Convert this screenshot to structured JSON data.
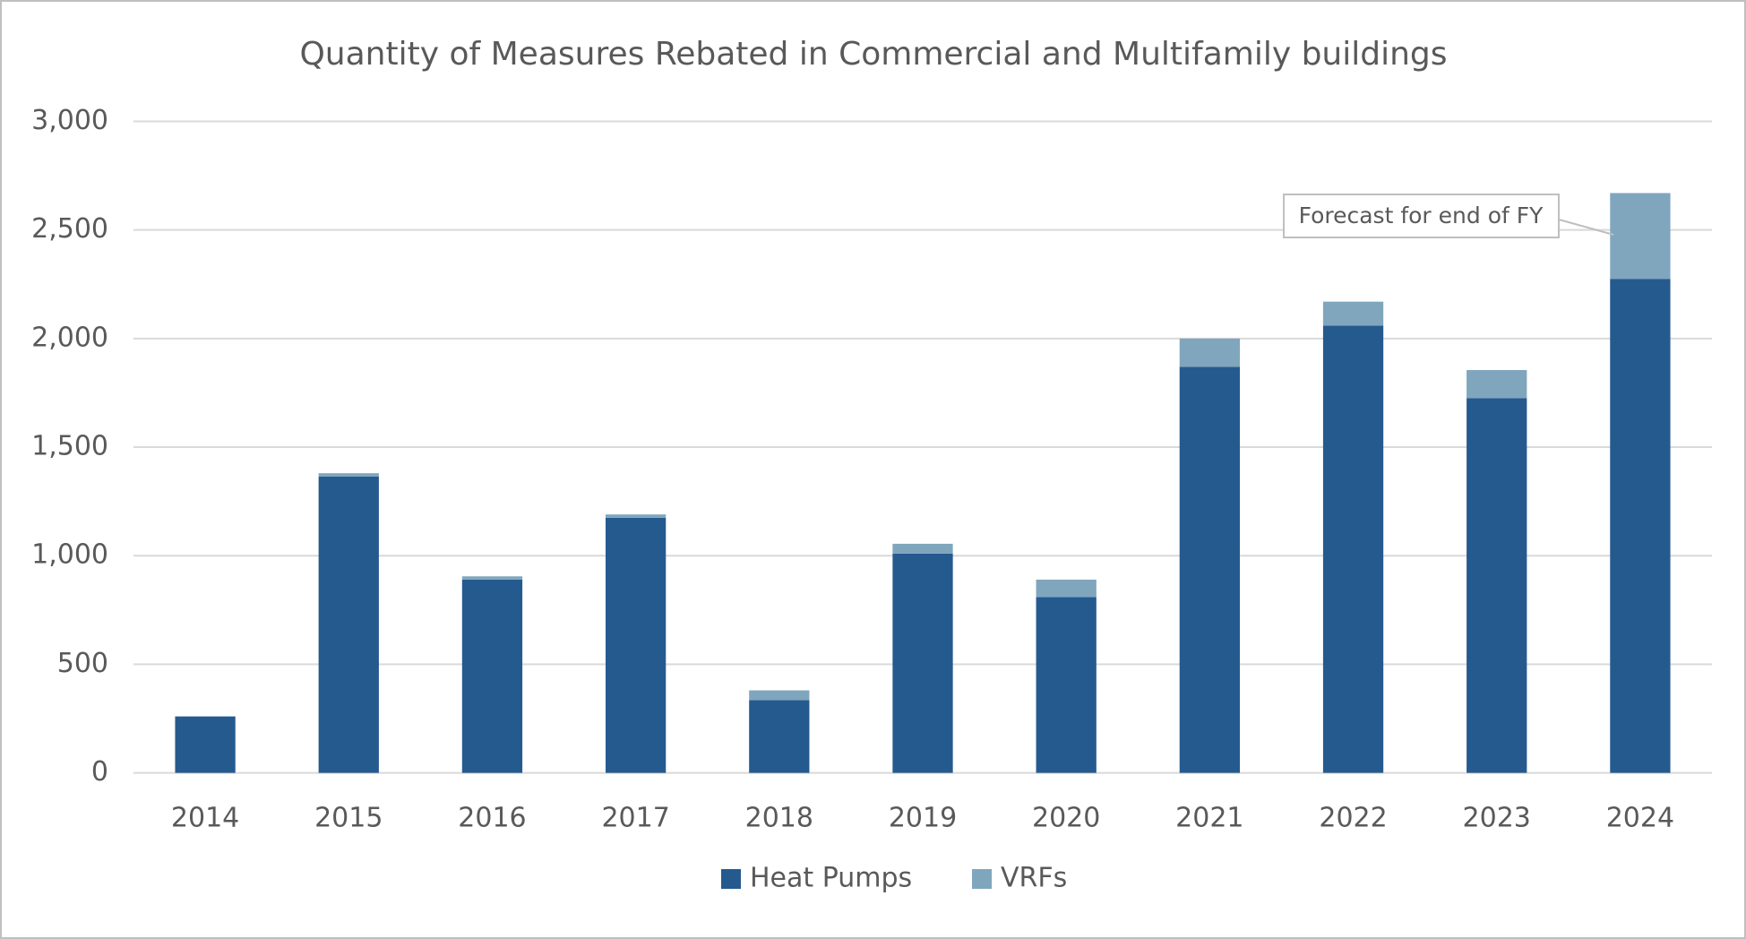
{
  "chart_data": {
    "type": "stacked_bar",
    "title": "Quantity of Measures Rebated in Commercial and Multifamily buildings",
    "categories": [
      "2014",
      "2015",
      "2016",
      "2017",
      "2018",
      "2019",
      "2020",
      "2021",
      "2022",
      "2023",
      "2024"
    ],
    "series": [
      {
        "name": "Heat Pumps",
        "color": "#255a8f",
        "values": [
          260,
          1365,
          890,
          1175,
          335,
          1010,
          810,
          1870,
          2060,
          1725,
          2275
        ]
      },
      {
        "name": "VRFs",
        "color": "#7fa6bd",
        "values": [
          0,
          15,
          15,
          15,
          45,
          45,
          80,
          130,
          110,
          130,
          395
        ]
      }
    ],
    "ylim": [
      0,
      3000
    ],
    "yticks": [
      0,
      500,
      {
        "value": 1000,
        "label": "1,000"
      },
      {
        "value": 1500,
        "label": "1,500"
      },
      {
        "value": 2000,
        "label": "2,000"
      },
      {
        "value": 2500,
        "label": "2,500"
      },
      {
        "value": 3000,
        "label": "3,000"
      }
    ],
    "grid": true,
    "legend": "bottom",
    "annotation": "Forecast for end of FY"
  }
}
